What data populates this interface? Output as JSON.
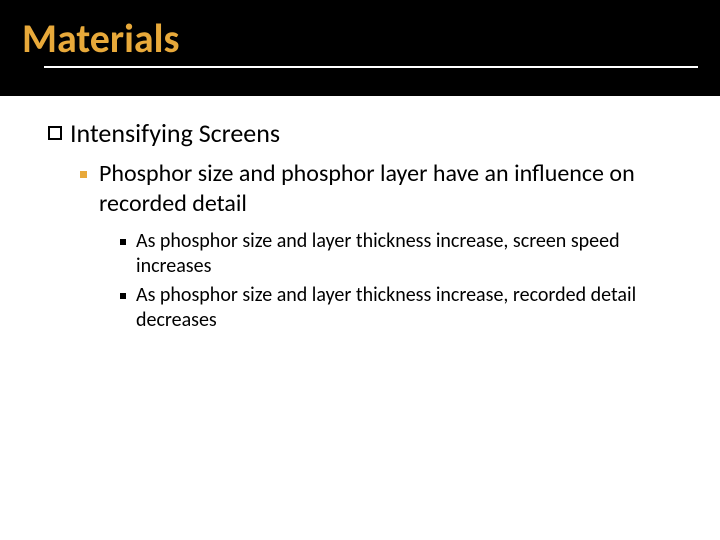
{
  "colors": {
    "header_bg": "#000000",
    "title_color": "#e8a93a",
    "underline_color": "#ffffff",
    "body_text": "#000000",
    "l2_bullet": "#e8a93a",
    "l3_bullet": "#000000",
    "page_bg": "#ffffff"
  },
  "typography": {
    "title_fontsize": 40,
    "l1_fontsize": 26,
    "l2_fontsize": 24,
    "l3_fontsize": 20,
    "title_weight": 700
  },
  "title": "Materials",
  "bullets": {
    "l1": "Intensifying Screens",
    "l2": "Phosphor size and phosphor layer have an influence on recorded detail",
    "l3a": "As phosphor size and layer thickness increase, screen speed increases",
    "l3b": "As phosphor size and layer thickness increase, recorded detail decreases"
  }
}
